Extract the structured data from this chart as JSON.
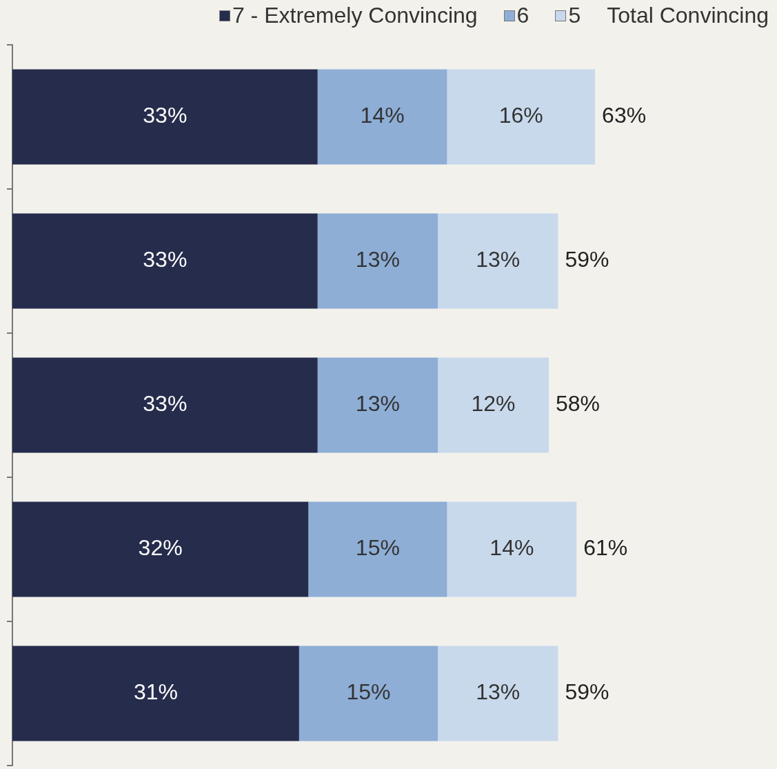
{
  "chart_data": {
    "type": "bar",
    "orientation": "horizontal",
    "stacked": true,
    "categories": [
      null,
      null,
      null,
      null,
      null
    ],
    "series": [
      {
        "name": "7 - Extremely Convincing",
        "color": "#262c4c",
        "values": [
          33,
          33,
          33,
          32,
          31
        ],
        "value_labels": [
          "33%",
          "33%",
          "33%",
          "32%",
          "31%"
        ]
      },
      {
        "name": "6",
        "color": "#8eaed6",
        "values": [
          14,
          13,
          13,
          15,
          15
        ],
        "value_labels": [
          "14%",
          "13%",
          "13%",
          "15%",
          "15%"
        ]
      },
      {
        "name": "5",
        "color": "#c9d9ec",
        "values": [
          16,
          13,
          12,
          14,
          13
        ],
        "value_labels": [
          "16%",
          "13%",
          "12%",
          "14%",
          "13%"
        ]
      }
    ],
    "totals": [
      "63%",
      "59%",
      "58%",
      "61%",
      "59%"
    ],
    "legend": "top right",
    "tick_labels": false,
    "annotations": [
      "Total Convincing"
    ]
  }
}
